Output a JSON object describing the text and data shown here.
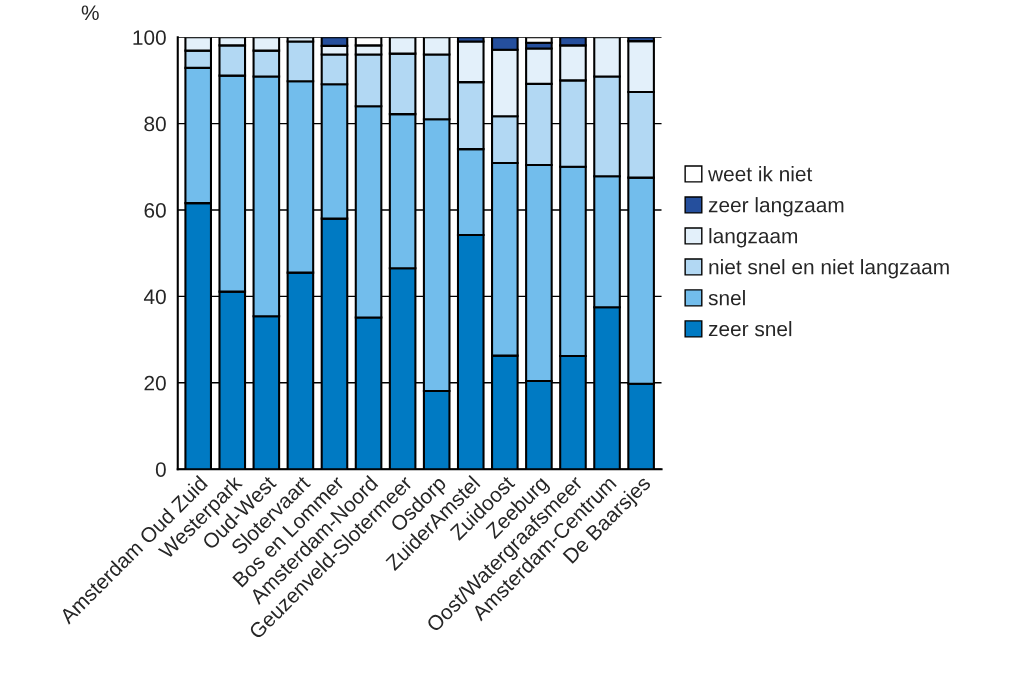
{
  "chart_data": {
    "type": "bar",
    "stacked": true,
    "ylabel": "%",
    "categories": [
      "Amsterdam Oud Zuid",
      "Westerpark",
      "Oud-West",
      "Slotervaart",
      "Bos en Lommer",
      "Amsterdam-Noord",
      "Geuzenveld-Slotermeer",
      "Osdorp",
      "ZuiderAmstel",
      "Zuidoost",
      "Zeeburg",
      "Oost/Watergraafsmeer",
      "Amsterdam-Centrum",
      "De Baarsjes"
    ],
    "series": [
      {
        "name": "zeer snel",
        "color": "#007ac3",
        "values": [
          61.6,
          41.1,
          35.4,
          45.5,
          58.0,
          35.1,
          46.5,
          18.1,
          54.2,
          26.3,
          20.4,
          26.2,
          37.5,
          19.8
        ]
      },
      {
        "name": "snel",
        "color": "#72bdec",
        "values": [
          31.3,
          50.0,
          55.5,
          44.3,
          31.1,
          48.9,
          35.7,
          62.9,
          19.9,
          44.6,
          50.0,
          43.8,
          30.3,
          47.7
        ]
      },
      {
        "name": "niet snel en niet langzaam",
        "color": "#b2d8f3",
        "values": [
          4.0,
          7.0,
          6.0,
          9.2,
          6.9,
          12.0,
          14.0,
          15.0,
          15.5,
          10.8,
          18.8,
          20.0,
          23.1,
          19.8
        ]
      },
      {
        "name": "langzaam",
        "color": "#e3f0fa",
        "values": [
          3.1,
          1.9,
          3.1,
          1.0,
          2.0,
          2.1,
          3.8,
          4.0,
          9.4,
          15.4,
          8.2,
          8.1,
          9.1,
          11.8
        ]
      },
      {
        "name": "zeer langzaam",
        "color": "#254f9d",
        "values": [
          null,
          null,
          null,
          null,
          2.0,
          null,
          null,
          null,
          1.0,
          2.9,
          1.3,
          1.9,
          null,
          0.9
        ]
      },
      {
        "name": "weet ik niet",
        "color": "#ffffff",
        "values": [
          null,
          null,
          null,
          null,
          null,
          1.9,
          null,
          null,
          null,
          null,
          1.3,
          null,
          null,
          null
        ]
      }
    ],
    "ylim": [
      0,
      100
    ],
    "yticks": [
      0,
      20,
      40,
      60,
      80,
      100
    ],
    "grid": "y",
    "legend": "right"
  }
}
